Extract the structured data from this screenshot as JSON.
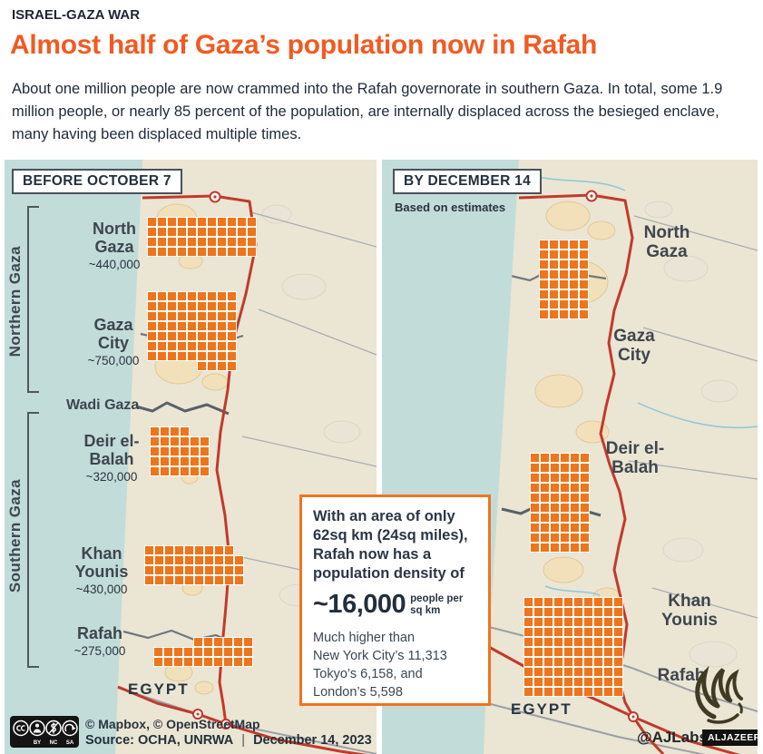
{
  "header": {
    "kicker": "ISRAEL-GAZA WAR",
    "title": "Almost half of Gaza’s population now in Rafah",
    "description": "About one million people are now crammed into the Rafah governorate in southern Gaza. In total, some 1.9 million people, or nearly 85 percent of the population, are internally displaced across the besieged enclave, many having been displaced multiple times."
  },
  "panel_before": {
    "label": "BEFORE OCTOBER 7",
    "bracket_north": "Northern Gaza",
    "bracket_south": "Southern Gaza",
    "wadi": "Wadi Gaza",
    "egypt": "EGYPT",
    "regions": {
      "north_gaza": {
        "name": "North Gaza",
        "population": "~440,000",
        "grid": {
          "rows": [
            {
              "offset": 0,
              "count": 11
            },
            {
              "offset": 0,
              "count": 11
            },
            {
              "offset": 0,
              "count": 11
            },
            {
              "offset": 0,
              "count": 11
            }
          ]
        }
      },
      "gaza_city": {
        "name": "Gaza City",
        "population": "~750,000",
        "grid": {
          "rows": [
            {
              "offset": 0,
              "count": 9
            },
            {
              "offset": 0,
              "count": 9
            },
            {
              "offset": 0,
              "count": 9
            },
            {
              "offset": 0,
              "count": 9
            },
            {
              "offset": 0,
              "count": 9
            },
            {
              "offset": 0,
              "count": 9
            },
            {
              "offset": 0,
              "count": 9
            },
            {
              "offset": 5,
              "count": 4
            }
          ]
        }
      },
      "deir": {
        "name": "Deir el-Balah",
        "population": "~320,000",
        "grid": {
          "rows": [
            {
              "offset": 0,
              "count": 4
            },
            {
              "offset": 0,
              "count": 6
            },
            {
              "offset": 0,
              "count": 6
            },
            {
              "offset": 0,
              "count": 6
            },
            {
              "offset": 0,
              "count": 6
            }
          ]
        }
      },
      "khan": {
        "name": "Khan Younis",
        "population": "~430,000",
        "grid": {
          "rows": [
            {
              "offset": 0,
              "count": 9
            },
            {
              "offset": 0,
              "count": 10
            },
            {
              "offset": 0,
              "count": 10
            },
            {
              "offset": 0,
              "count": 10
            }
          ]
        }
      },
      "rafah": {
        "name": "Rafah",
        "population": "~275,000",
        "grid": {
          "rows": [
            {
              "offset": 4,
              "count": 6
            },
            {
              "offset": 0,
              "count": 10
            },
            {
              "offset": 0,
              "count": 10
            }
          ]
        }
      }
    }
  },
  "panel_after": {
    "label": "BY DECEMBER 14",
    "sublabel": "Based on estimates",
    "egypt": "EGYPT",
    "regions": {
      "north_gaza": {
        "name": "North Gaza"
      },
      "gaza_city": {
        "name": "Gaza City"
      },
      "deir": {
        "name": "Deir el-Balah"
      },
      "khan": {
        "name": "Khan Younis"
      },
      "rafah": {
        "name": "Rafah"
      }
    },
    "grids": {
      "north": {
        "rows": [
          {
            "offset": 0,
            "count": 5
          },
          {
            "offset": 0,
            "count": 5
          },
          {
            "offset": 0,
            "count": 5
          },
          {
            "offset": 0,
            "count": 5
          },
          {
            "offset": 0,
            "count": 5
          },
          {
            "offset": 0,
            "count": 5
          },
          {
            "offset": 0,
            "count": 5
          },
          {
            "offset": 0,
            "count": 5
          }
        ]
      },
      "deir": {
        "rows": [
          {
            "offset": 0,
            "count": 6
          },
          {
            "offset": 0,
            "count": 6
          },
          {
            "offset": 0,
            "count": 6
          },
          {
            "offset": 0,
            "count": 6
          },
          {
            "offset": 0,
            "count": 6
          },
          {
            "offset": 0,
            "count": 6
          },
          {
            "offset": 0,
            "count": 6
          },
          {
            "offset": 0,
            "count": 6
          },
          {
            "offset": 0,
            "count": 6
          },
          {
            "offset": 0,
            "count": 6
          }
        ]
      },
      "rafah": {
        "rows": [
          {
            "offset": 0,
            "count": 10
          },
          {
            "offset": 0,
            "count": 10
          },
          {
            "offset": 0,
            "count": 10
          },
          {
            "offset": 0,
            "count": 10
          },
          {
            "offset": 0,
            "count": 10
          },
          {
            "offset": 0,
            "count": 10
          },
          {
            "offset": 0,
            "count": 10
          },
          {
            "offset": 0,
            "count": 10
          },
          {
            "offset": 0,
            "count": 10
          },
          {
            "offset": 0,
            "count": 10
          }
        ]
      }
    }
  },
  "infobox": {
    "intro_lines": [
      "With an area of only",
      "62sq km (24sq miles),",
      "Rafah now has a",
      "population density of"
    ],
    "big_number": "~16,000",
    "big_unit": "people per sq km",
    "comparison_lines": [
      "Much higher than",
      "New York City’s 11,313",
      "Tokyo’s 6,158, and",
      "London’s 5,598"
    ]
  },
  "footer": {
    "license": [
      "BY",
      "NC",
      "SA"
    ],
    "attribution": "© Mapbox, © OpenStreetMap",
    "source": "Source: OCHA, UNRWA",
    "separator": "|",
    "date": "December 14, 2023"
  },
  "credits": {
    "handle": "@AJLabs",
    "network": "ALJAZEERA"
  },
  "colors": {
    "accent_orange": "#ee751b",
    "title_orange": "#f15a22",
    "dark_text": "#23303c",
    "sea": "#c2dcda",
    "land": "#ebe5d3",
    "border_red": "#c13a2c"
  },
  "chart_data": [
    {
      "type": "table",
      "title": "BEFORE OCTOBER 7",
      "categories": [
        "North Gaza",
        "Gaza City",
        "Deir el-Balah",
        "Khan Younis",
        "Rafah"
      ],
      "values": [
        440000,
        750000,
        320000,
        430000,
        275000
      ],
      "value_labels": [
        "~440,000",
        "~750,000",
        "~320,000",
        "~430,000",
        "~275,000"
      ],
      "square_counts": [
        44,
        67,
        28,
        39,
        26
      ],
      "region_groups": [
        "Northern Gaza",
        "Northern Gaza",
        "Southern Gaza",
        "Southern Gaza",
        "Southern Gaza"
      ]
    },
    {
      "type": "table",
      "title": "BY DECEMBER 14",
      "subtitle": "Based on estimates",
      "categories": [
        "North Gaza / Gaza City",
        "Deir el-Balah",
        "Rafah / Khan Younis"
      ],
      "square_counts": [
        40,
        60,
        100
      ]
    }
  ]
}
